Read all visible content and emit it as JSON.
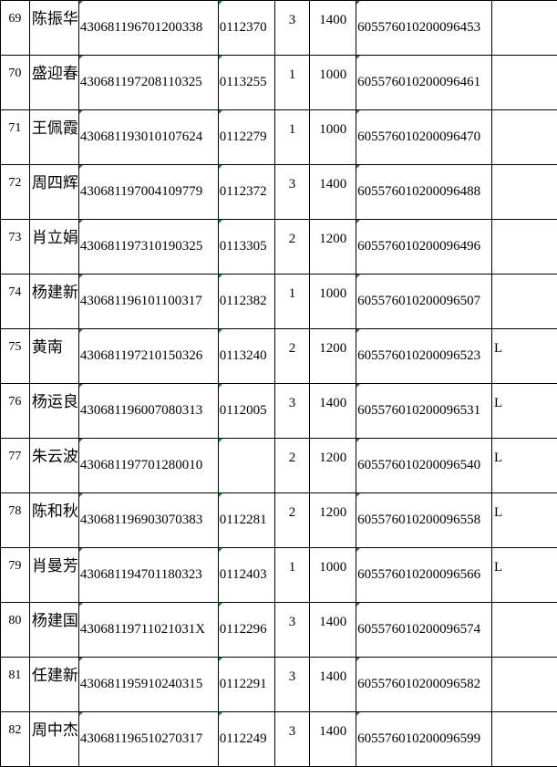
{
  "rows": [
    {
      "no": "69",
      "name": "陈振华",
      "id": "430681196701200338",
      "code": "0112370",
      "count": "3",
      "amount": "1400",
      "account": "605576010200096453",
      "mark": ""
    },
    {
      "no": "70",
      "name": "盛迎春",
      "id": "430681197208110325",
      "code": "0113255",
      "count": "1",
      "amount": "1000",
      "account": "605576010200096461",
      "mark": ""
    },
    {
      "no": "71",
      "name": "王佩霞",
      "id": "430681193010107624",
      "code": "0112279",
      "count": "1",
      "amount": "1000",
      "account": "605576010200096470",
      "mark": ""
    },
    {
      "no": "72",
      "name": "周四辉",
      "id": "430681197004109779",
      "code": "0112372",
      "count": "3",
      "amount": "1400",
      "account": "605576010200096488",
      "mark": ""
    },
    {
      "no": "73",
      "name": "肖立娟",
      "id": "430681197310190325",
      "code": "0113305",
      "count": "2",
      "amount": "1200",
      "account": "605576010200096496",
      "mark": ""
    },
    {
      "no": "74",
      "name": "杨建新",
      "id": "430681196101100317",
      "code": "0112382",
      "count": "1",
      "amount": "1000",
      "account": "605576010200096507",
      "mark": ""
    },
    {
      "no": "75",
      "name": "黄南",
      "id": "430681197210150326",
      "code": "0113240",
      "count": "2",
      "amount": "1200",
      "account": "605576010200096523",
      "mark": "L"
    },
    {
      "no": "76",
      "name": "杨运良",
      "id": "430681196007080313",
      "code": "0112005",
      "count": "3",
      "amount": "1400",
      "account": "605576010200096531",
      "mark": "L"
    },
    {
      "no": "77",
      "name": "朱云波",
      "id": "430681197701280010",
      "code": "",
      "count": "2",
      "amount": "1200",
      "account": "605576010200096540",
      "mark": "L"
    },
    {
      "no": "78",
      "name": "陈和秋",
      "id": "430681196903070383",
      "code": "0112281",
      "count": "2",
      "amount": "1200",
      "account": "605576010200096558",
      "mark": "L"
    },
    {
      "no": "79",
      "name": "肖曼芳",
      "id": "430681194701180323",
      "code": "0112403",
      "count": "1",
      "amount": "1000",
      "account": "605576010200096566",
      "mark": "L"
    },
    {
      "no": "80",
      "name": "杨建国",
      "id": "43068119711021031X",
      "code": "0112296",
      "count": "3",
      "amount": "1400",
      "account": "605576010200096574",
      "mark": ""
    },
    {
      "no": "81",
      "name": "任建新",
      "id": "430681195910240315",
      "code": "0112291",
      "count": "3",
      "amount": "1400",
      "account": "605576010200096582",
      "mark": ""
    },
    {
      "no": "82",
      "name": "周中杰",
      "id": "430681196510270317",
      "code": "0112249",
      "count": "3",
      "amount": "1400",
      "account": "605576010200096599",
      "mark": ""
    }
  ],
  "colors": {
    "grid": "#000000",
    "error_indicator": "#1a8a1a"
  }
}
